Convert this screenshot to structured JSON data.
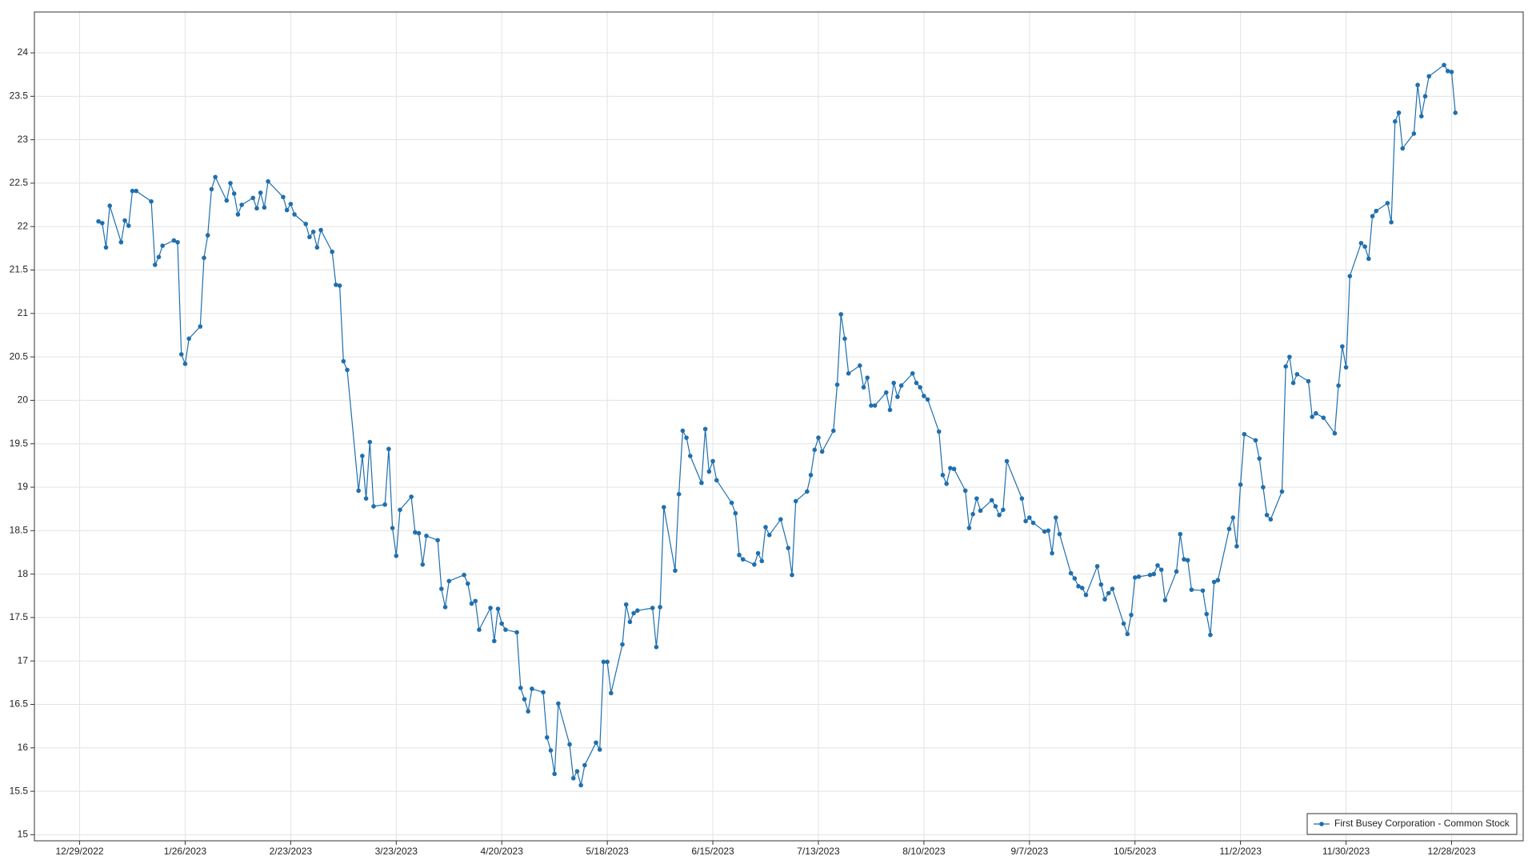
{
  "chart_data": {
    "type": "line",
    "x": [
      "1/3/2023",
      "1/4/2023",
      "1/5/2023",
      "1/6/2023",
      "1/9/2023",
      "1/10/2023",
      "1/11/2023",
      "1/12/2023",
      "1/13/2023",
      "1/17/2023",
      "1/18/2023",
      "1/19/2023",
      "1/20/2023",
      "1/23/2023",
      "1/24/2023",
      "1/25/2023",
      "1/26/2023",
      "1/27/2023",
      "1/30/2023",
      "1/31/2023",
      "2/1/2023",
      "2/2/2023",
      "2/3/2023",
      "2/6/2023",
      "2/7/2023",
      "2/8/2023",
      "2/9/2023",
      "2/10/2023",
      "2/13/2023",
      "2/14/2023",
      "2/15/2023",
      "2/16/2023",
      "2/17/2023",
      "2/21/2023",
      "2/22/2023",
      "2/23/2023",
      "2/24/2023",
      "2/27/2023",
      "2/28/2023",
      "3/1/2023",
      "3/2/2023",
      "3/3/2023",
      "3/6/2023",
      "3/7/2023",
      "3/8/2023",
      "3/9/2023",
      "3/10/2023",
      "3/13/2023",
      "3/14/2023",
      "3/15/2023",
      "3/16/2023",
      "3/17/2023",
      "3/20/2023",
      "3/21/2023",
      "3/22/2023",
      "3/23/2023",
      "3/24/2023",
      "3/27/2023",
      "3/28/2023",
      "3/29/2023",
      "3/30/2023",
      "3/31/2023",
      "4/3/2023",
      "4/4/2023",
      "4/5/2023",
      "4/6/2023",
      "4/10/2023",
      "4/11/2023",
      "4/12/2023",
      "4/13/2023",
      "4/14/2023",
      "4/17/2023",
      "4/18/2023",
      "4/19/2023",
      "4/20/2023",
      "4/21/2023",
      "4/24/2023",
      "4/25/2023",
      "4/26/2023",
      "4/27/2023",
      "4/28/2023",
      "5/1/2023",
      "5/2/2023",
      "5/3/2023",
      "5/4/2023",
      "5/5/2023",
      "5/8/2023",
      "5/9/2023",
      "5/10/2023",
      "5/11/2023",
      "5/12/2023",
      "5/15/2023",
      "5/16/2023",
      "5/17/2023",
      "5/18/2023",
      "5/19/2023",
      "5/22/2023",
      "5/23/2023",
      "5/24/2023",
      "5/25/2023",
      "5/26/2023",
      "5/30/2023",
      "5/31/2023",
      "6/1/2023",
      "6/2/2023",
      "6/5/2023",
      "6/6/2023",
      "6/7/2023",
      "6/8/2023",
      "6/9/2023",
      "6/12/2023",
      "6/13/2023",
      "6/14/2023",
      "6/15/2023",
      "6/16/2023",
      "6/20/2023",
      "6/21/2023",
      "6/22/2023",
      "6/23/2023",
      "6/26/2023",
      "6/27/2023",
      "6/28/2023",
      "6/29/2023",
      "6/30/2023",
      "7/3/2023",
      "7/5/2023",
      "7/6/2023",
      "7/7/2023",
      "7/10/2023",
      "7/11/2023",
      "7/12/2023",
      "7/13/2023",
      "7/14/2023",
      "7/17/2023",
      "7/18/2023",
      "7/19/2023",
      "7/20/2023",
      "7/21/2023",
      "7/24/2023",
      "7/25/2023",
      "7/26/2023",
      "7/27/2023",
      "7/28/2023",
      "7/31/2023",
      "8/1/2023",
      "8/2/2023",
      "8/3/2023",
      "8/4/2023",
      "8/7/2023",
      "8/8/2023",
      "8/9/2023",
      "8/10/2023",
      "8/11/2023",
      "8/14/2023",
      "8/15/2023",
      "8/16/2023",
      "8/17/2023",
      "8/18/2023",
      "8/21/2023",
      "8/22/2023",
      "8/23/2023",
      "8/24/2023",
      "8/25/2023",
      "8/28/2023",
      "8/29/2023",
      "8/30/2023",
      "8/31/2023",
      "9/1/2023",
      "9/5/2023",
      "9/6/2023",
      "9/7/2023",
      "9/8/2023",
      "9/11/2023",
      "9/12/2023",
      "9/13/2023",
      "9/14/2023",
      "9/15/2023",
      "9/18/2023",
      "9/19/2023",
      "9/20/2023",
      "9/21/2023",
      "9/22/2023",
      "9/25/2023",
      "9/26/2023",
      "9/27/2023",
      "9/28/2023",
      "9/29/2023",
      "10/2/2023",
      "10/3/2023",
      "10/4/2023",
      "10/5/2023",
      "10/6/2023",
      "10/9/2023",
      "10/10/2023",
      "10/11/2023",
      "10/12/2023",
      "10/13/2023",
      "10/16/2023",
      "10/17/2023",
      "10/18/2023",
      "10/19/2023",
      "10/20/2023",
      "10/23/2023",
      "10/24/2023",
      "10/25/2023",
      "10/26/2023",
      "10/27/2023",
      "10/30/2023",
      "10/31/2023",
      "11/1/2023",
      "11/2/2023",
      "11/3/2023",
      "11/6/2023",
      "11/7/2023",
      "11/8/2023",
      "11/9/2023",
      "11/10/2023",
      "11/13/2023",
      "11/14/2023",
      "11/15/2023",
      "11/16/2023",
      "11/17/2023",
      "11/20/2023",
      "11/21/2023",
      "11/22/2023",
      "11/24/2023",
      "11/27/2023",
      "11/28/2023",
      "11/29/2023",
      "11/30/2023",
      "12/1/2023",
      "12/4/2023",
      "12/5/2023",
      "12/6/2023",
      "12/7/2023",
      "12/8/2023",
      "12/11/2023",
      "12/12/2023",
      "12/13/2023",
      "12/14/2023",
      "12/15/2023",
      "12/18/2023",
      "12/19/2023",
      "12/20/2023",
      "12/21/2023",
      "12/22/2023",
      "12/26/2023",
      "12/27/2023",
      "12/28/2023",
      "12/29/2023"
    ],
    "series": [
      {
        "name": "First Busey Corporation - Common Stock",
        "color": "#1f6fae",
        "values": [
          22.06,
          22.04,
          21.76,
          22.24,
          21.82,
          22.07,
          22.01,
          22.41,
          22.41,
          22.29,
          21.56,
          21.65,
          21.78,
          21.84,
          21.82,
          20.53,
          20.42,
          20.71,
          20.85,
          21.64,
          21.9,
          22.43,
          22.57,
          22.3,
          22.5,
          22.38,
          22.14,
          22.25,
          22.33,
          22.21,
          22.39,
          22.22,
          22.52,
          22.34,
          22.19,
          22.26,
          22.14,
          22.03,
          21.88,
          21.94,
          21.76,
          21.96,
          21.71,
          21.33,
          21.32,
          20.45,
          20.35,
          18.96,
          19.36,
          18.87,
          19.52,
          18.78,
          18.8,
          19.44,
          18.53,
          18.21,
          18.74,
          18.89,
          18.48,
          18.47,
          18.11,
          18.44,
          18.39,
          17.83,
          17.62,
          17.92,
          17.99,
          17.89,
          17.66,
          17.69,
          17.36,
          17.61,
          17.23,
          17.6,
          17.43,
          17.36,
          17.33,
          16.69,
          16.56,
          16.42,
          16.68,
          16.64,
          16.12,
          15.97,
          15.7,
          16.51,
          16.04,
          15.65,
          15.73,
          15.57,
          15.8,
          16.06,
          15.98,
          16.99,
          16.99,
          16.63,
          17.19,
          17.65,
          17.45,
          17.55,
          17.58,
          17.61,
          17.16,
          17.62,
          18.77,
          18.04,
          18.92,
          19.65,
          19.57,
          19.36,
          19.05,
          19.67,
          19.18,
          19.3,
          19.08,
          18.82,
          18.7,
          18.22,
          18.17,
          18.11,
          18.24,
          18.15,
          18.54,
          18.45,
          18.63,
          18.3,
          17.99,
          18.84,
          18.95,
          19.14,
          19.43,
          19.57,
          19.41,
          19.65,
          20.18,
          20.99,
          20.71,
          20.31,
          20.4,
          20.15,
          20.26,
          19.94,
          19.94,
          20.09,
          19.89,
          20.2,
          20.04,
          20.17,
          20.31,
          20.2,
          20.15,
          20.05,
          20.01,
          19.64,
          19.14,
          19.04,
          19.22,
          19.21,
          18.96,
          18.53,
          18.69,
          18.87,
          18.73,
          18.85,
          18.78,
          18.68,
          18.74,
          19.3,
          18.87,
          18.61,
          18.65,
          18.59,
          18.49,
          18.5,
          18.24,
          18.65,
          18.46,
          18.01,
          17.95,
          17.86,
          17.84,
          17.76,
          18.09,
          17.88,
          17.71,
          17.78,
          17.83,
          17.43,
          17.31,
          17.53,
          17.96,
          17.97,
          17.99,
          18.0,
          18.1,
          18.05,
          17.7,
          18.03,
          18.46,
          18.17,
          18.16,
          17.82,
          17.81,
          17.54,
          17.3,
          17.91,
          17.93,
          18.52,
          18.65,
          18.32,
          19.03,
          19.61,
          19.54,
          19.33,
          19.0,
          18.68,
          18.63,
          18.95,
          20.39,
          20.5,
          20.2,
          20.3,
          20.22,
          19.81,
          19.85,
          19.8,
          19.62,
          20.17,
          20.62,
          20.38,
          21.43,
          21.81,
          21.77,
          21.63,
          22.12,
          22.18,
          22.27,
          22.05,
          23.21,
          23.31,
          22.9,
          23.07,
          23.63,
          23.27,
          23.5,
          23.73,
          23.86,
          23.79,
          23.78,
          23.31
        ]
      }
    ],
    "xlim": [
      "12/17/2022",
      "1/16/2024"
    ],
    "xticks": [
      "12/29/2022",
      "1/26/2023",
      "2/23/2023",
      "3/23/2023",
      "4/20/2023",
      "5/18/2023",
      "6/15/2023",
      "7/13/2023",
      "8/10/2023",
      "9/7/2023",
      "10/5/2023",
      "11/2/2023",
      "11/30/2023",
      "12/28/2023"
    ],
    "ylim": [
      14.93,
      24.47
    ],
    "yticks": [
      15,
      15.5,
      16,
      16.5,
      17,
      17.5,
      18,
      18.5,
      19,
      19.5,
      20,
      20.5,
      21,
      21.5,
      22,
      22.5,
      23,
      23.5,
      24
    ],
    "grid": true,
    "legend": "lower right"
  }
}
